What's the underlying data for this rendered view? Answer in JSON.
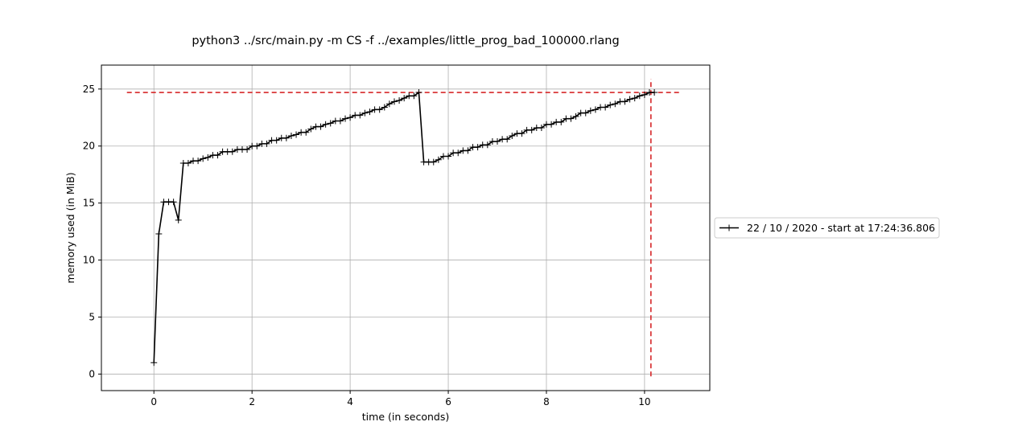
{
  "chart_data": {
    "type": "line",
    "title": "python3 ../src/main.py -m CS -f ../examples/little_prog_bad_100000.rlang",
    "xlabel": "time (in seconds)",
    "ylabel": "memory used (in MiB)",
    "xlim": [
      -1.07,
      11.33
    ],
    "ylim": [
      -1.45,
      27.1
    ],
    "xticks": [
      0,
      2,
      4,
      6,
      8,
      10
    ],
    "yticks": [
      0,
      5,
      10,
      15,
      20,
      25
    ],
    "grid": true,
    "legend_position": "center-right, outside plot",
    "colors": {
      "series": "#000000",
      "peak_marker": "#d62728",
      "grid": "#b0b0b0"
    },
    "series": [
      {
        "name": "22 / 10 / 2020 - start at 17:24:36.806",
        "marker": "+",
        "x": [
          0,
          0.1,
          0.2,
          0.3,
          0.4,
          0.5,
          0.6,
          0.7,
          0.8,
          0.9,
          1.0,
          1.1,
          1.2,
          1.3,
          1.4,
          1.5,
          1.6,
          1.7,
          1.8,
          1.9,
          2.0,
          2.1,
          2.2,
          2.3,
          2.4,
          2.5,
          2.6,
          2.7,
          2.8,
          2.9,
          3.0,
          3.1,
          3.2,
          3.3,
          3.4,
          3.5,
          3.6,
          3.7,
          3.8,
          3.9,
          4.0,
          4.1,
          4.2,
          4.3,
          4.4,
          4.5,
          4.6,
          4.7,
          4.8,
          4.9,
          5.0,
          5.1,
          5.2,
          5.3,
          5.4,
          5.5,
          5.6,
          5.7,
          5.8,
          5.9,
          6.0,
          6.1,
          6.2,
          6.3,
          6.4,
          6.5,
          6.6,
          6.7,
          6.8,
          6.9,
          7.0,
          7.1,
          7.2,
          7.3,
          7.4,
          7.5,
          7.6,
          7.7,
          7.8,
          7.9,
          8.0,
          8.1,
          8.2,
          8.3,
          8.4,
          8.5,
          8.6,
          8.7,
          8.8,
          8.9,
          9.0,
          9.1,
          9.2,
          9.3,
          9.4,
          9.5,
          9.6,
          9.7,
          9.8,
          9.9,
          10.0,
          10.1,
          10.2
        ],
        "y": [
          1.0,
          12.3,
          15.1,
          15.1,
          15.1,
          13.5,
          18.5,
          18.5,
          18.7,
          18.7,
          18.9,
          19.0,
          19.2,
          19.2,
          19.5,
          19.5,
          19.5,
          19.7,
          19.7,
          19.7,
          20.0,
          20.0,
          20.2,
          20.2,
          20.5,
          20.5,
          20.7,
          20.7,
          20.9,
          21.0,
          21.2,
          21.2,
          21.5,
          21.7,
          21.7,
          21.9,
          22.0,
          22.2,
          22.2,
          22.4,
          22.5,
          22.7,
          22.7,
          22.9,
          23.0,
          23.2,
          23.2,
          23.4,
          23.7,
          23.9,
          24.0,
          24.2,
          24.4,
          24.4,
          24.7,
          18.6,
          18.6,
          18.6,
          18.8,
          19.1,
          19.1,
          19.4,
          19.4,
          19.6,
          19.6,
          19.9,
          19.9,
          20.1,
          20.1,
          20.4,
          20.4,
          20.6,
          20.6,
          20.9,
          21.1,
          21.1,
          21.4,
          21.4,
          21.6,
          21.6,
          21.9,
          21.9,
          22.1,
          22.1,
          22.4,
          22.4,
          22.6,
          22.9,
          22.9,
          23.1,
          23.2,
          23.4,
          23.4,
          23.6,
          23.7,
          23.9,
          23.9,
          24.1,
          24.2,
          24.4,
          24.5,
          24.7,
          24.7
        ]
      }
    ],
    "peak": {
      "x": 10.13,
      "y": 24.7,
      "h_line_x": [
        -0.55,
        10.75
      ],
      "v_line_y": [
        -0.2,
        25.9
      ]
    }
  }
}
